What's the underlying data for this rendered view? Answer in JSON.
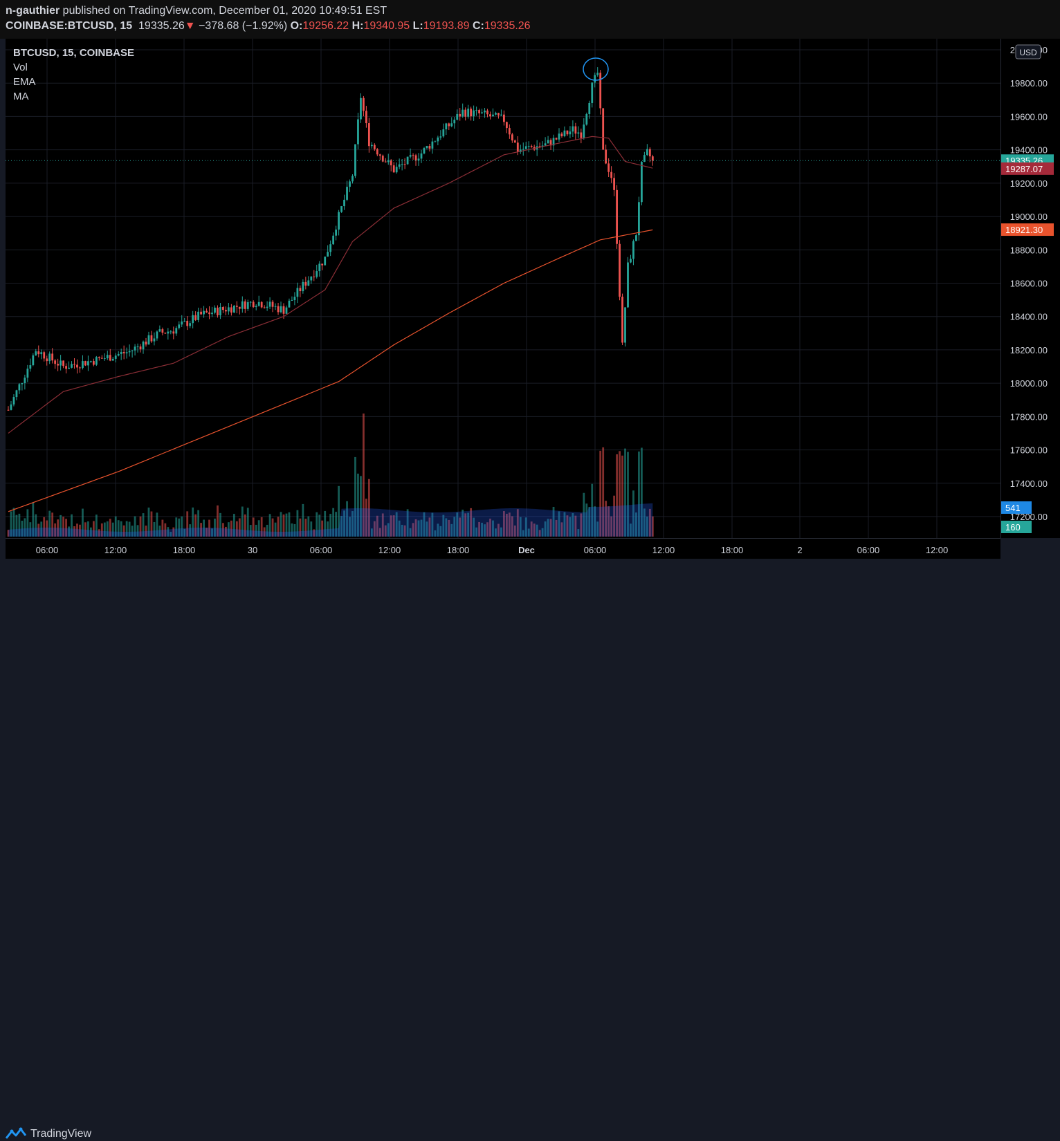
{
  "header": {
    "author": "n-gauthier",
    "published_text": " published on TradingView.com, December 01, 2020 10:49:51 EST",
    "symbol": "COINBASE:BTCUSD, 15",
    "last": "19335.26",
    "change": "−378.68 (−1.92%)",
    "o_label": "O:",
    "o_value": "19256.22",
    "h_label": "H:",
    "h_value": "19340.95",
    "l_label": "L:",
    "l_value": "19193.89",
    "c_label": "C:",
    "c_value": "19335.26"
  },
  "legend": {
    "symbol": "BTCUSD, 15, COINBASE",
    "items": [
      "Vol",
      "EMA",
      "MA"
    ]
  },
  "footer": {
    "brand": "TradingView"
  },
  "colors": {
    "up": "#26A69A",
    "down": "#EF5350",
    "ema": "#8B2E36",
    "ma": "#E9532D",
    "last_label": "#26A69A",
    "ema_label": "#A52A3A",
    "ma_label": "#E9532D",
    "vol_label_up": "#1E88E5",
    "vol_label_dn": "#26A69A"
  },
  "chart_data": {
    "type": "candlestick",
    "yaxis": {
      "ticks": [
        "20000.00",
        "19800.00",
        "19600.00",
        "19400.00",
        "19200.00",
        "19000.00",
        "18800.00",
        "18600.00",
        "18400.00",
        "18200.00",
        "18000.00",
        "17800.00",
        "17600.00",
        "17400.00",
        "17200.00"
      ],
      "ylim": [
        17200,
        20000
      ],
      "currency": "USD"
    },
    "xaxis": {
      "ticks": [
        "06:00",
        "12:00",
        "18:00",
        "30",
        "06:00",
        "12:00",
        "18:00",
        "Dec",
        "06:00",
        "12:00",
        "18:00",
        "2",
        "06:00",
        "12:00"
      ]
    },
    "price_labels": [
      {
        "text": "19335.26",
        "value": 19335.26,
        "kind": "last"
      },
      {
        "text": "19287.07",
        "value": 19287.07,
        "kind": "ema"
      },
      {
        "text": "18921.30",
        "value": 18921.3,
        "kind": "ma"
      },
      {
        "text": "541",
        "value": 541,
        "kind": "vol_ma"
      },
      {
        "text": "160",
        "value": 160,
        "kind": "vol"
      }
    ],
    "last_price": 19335.26,
    "keypoints": [
      [
        0,
        17840
      ],
      [
        10,
        18200
      ],
      [
        20,
        18100
      ],
      [
        32,
        18140
      ],
      [
        44,
        18190
      ],
      [
        55,
        18300
      ],
      [
        60,
        18320
      ],
      [
        70,
        18410
      ],
      [
        80,
        18450
      ],
      [
        90,
        18490
      ],
      [
        100,
        18440
      ],
      [
        115,
        18750
      ],
      [
        125,
        19250
      ],
      [
        128,
        19720
      ],
      [
        131,
        19450
      ],
      [
        140,
        19280
      ],
      [
        150,
        19380
      ],
      [
        165,
        19630
      ],
      [
        173,
        19610
      ],
      [
        180,
        19580
      ],
      [
        185,
        19400
      ],
      [
        195,
        19430
      ],
      [
        205,
        19520
      ],
      [
        208,
        19500
      ],
      [
        212,
        19780
      ],
      [
        214,
        19860
      ],
      [
        216,
        19380
      ],
      [
        219,
        19240
      ],
      [
        220,
        19140
      ],
      [
        221,
        18860
      ],
      [
        223,
        18220
      ],
      [
        225,
        18700
      ],
      [
        228,
        18900
      ],
      [
        230,
        19300
      ],
      [
        232,
        19380
      ],
      [
        234,
        19340
      ]
    ],
    "ema_keypoints": [
      [
        0,
        17700
      ],
      [
        20,
        17950
      ],
      [
        40,
        18040
      ],
      [
        60,
        18120
      ],
      [
        80,
        18280
      ],
      [
        100,
        18400
      ],
      [
        115,
        18560
      ],
      [
        125,
        18850
      ],
      [
        140,
        19050
      ],
      [
        160,
        19200
      ],
      [
        180,
        19370
      ],
      [
        200,
        19440
      ],
      [
        212,
        19480
      ],
      [
        218,
        19470
      ],
      [
        224,
        19330
      ],
      [
        234,
        19290
      ]
    ],
    "ma_keypoints": [
      [
        0,
        17230
      ],
      [
        40,
        17470
      ],
      [
        80,
        17740
      ],
      [
        120,
        18010
      ],
      [
        140,
        18230
      ],
      [
        160,
        18420
      ],
      [
        180,
        18600
      ],
      [
        200,
        18750
      ],
      [
        215,
        18860
      ],
      [
        234,
        18920
      ]
    ]
  }
}
